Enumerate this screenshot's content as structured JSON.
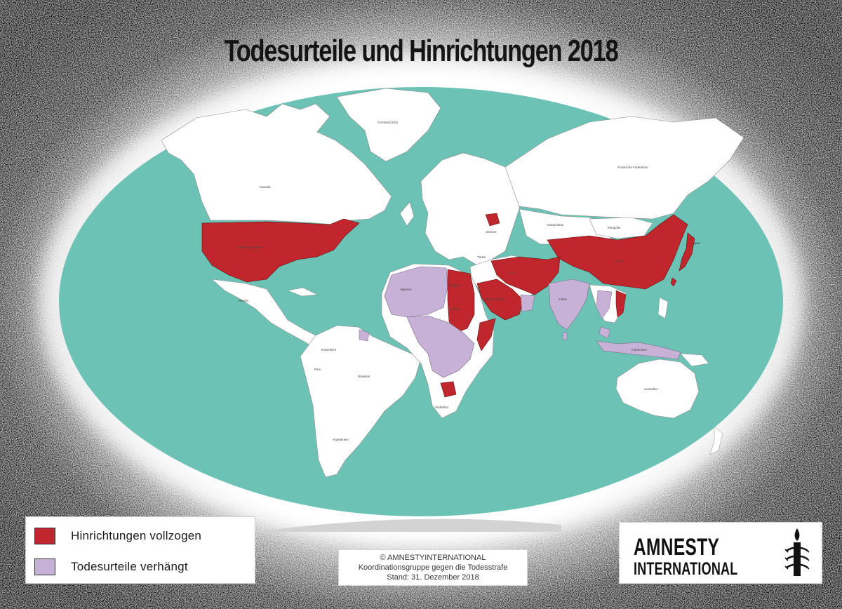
{
  "title": "Todesurteile und Hinrichtungen 2018",
  "colors": {
    "ocean": "#6cc2b5",
    "land": "#ffffff",
    "executions": "#c0272d",
    "death_sentences": "#c8b1d6",
    "frame": "#111111",
    "antarctica": "#d3d3d3"
  },
  "legend": {
    "executions_label": "Hinrichtungen vollzogen",
    "death_sentences_label": "Todesurteile verhängt"
  },
  "credits": {
    "line1": "© AMNESTYINTERNATIONAL",
    "line2": "Koordinationsgruppe gegen die Todesstrafe",
    "line3": "Stand: 31. Dezember 2018"
  },
  "logo": {
    "line1": "AMNESTY",
    "line2": "INTERNATIONAL",
    "icon": "candle-barbed-wire-icon"
  },
  "map_labels": {
    "groenland": "Grönland (DK)",
    "russland": "Russische Föderation",
    "kanada": "Kanada",
    "vereinigte_staaten": "Vereinigte Staaten",
    "brasilien": "Brasilien",
    "argentinien": "Argentinien",
    "mongolei": "Mongolei",
    "kasachstan": "Kasachstan",
    "china": "China",
    "indien": "Indien",
    "australien": "Australien",
    "algerien": "Algerien",
    "aegypten": "Ägypten",
    "sudan": "Sudan",
    "suedafrika": "Südafrika",
    "iran": "Iran",
    "saudi_arabien": "Saudi-Arabien",
    "tuerkei": "Türkei",
    "ukraine": "Ukraine",
    "mexiko": "Mexiko",
    "peru": "Peru",
    "kolumbien": "Kolumbien",
    "indonesien": "Indonesien",
    "japan": "Japan"
  },
  "countries": {
    "executions": [
      "Vereinigte Staaten",
      "Belarus",
      "Ägypten",
      "Sudan",
      "Südsudan",
      "Somalia",
      "Botsuana",
      "Saudi-Arabien",
      "Irak",
      "Iran",
      "Afghanistan",
      "Pakistan",
      "Jemen",
      "China",
      "Japan",
      "Vietnam",
      "Singapur",
      "Taiwan"
    ],
    "death_sentences": [
      "Algerien",
      "Marokko",
      "Tunesien",
      "Libyen",
      "Mauretanien",
      "Mali",
      "Niger",
      "Nigeria",
      "Kamerun",
      "Sierra Leone",
      "Ghana",
      "Gambia",
      "DR Kongo",
      "Kenia",
      "Tansania",
      "Sambia",
      "Simbabwe",
      "Malawi",
      "Indien",
      "Bangladesch",
      "Sri Lanka",
      "Thailand",
      "Malaysia",
      "Indonesien",
      "Guyana",
      "Trinidad und Tobago",
      "Oman",
      "Kuwait",
      "Jordanien",
      "Libanon",
      "Palästina",
      "Laos"
    ]
  }
}
